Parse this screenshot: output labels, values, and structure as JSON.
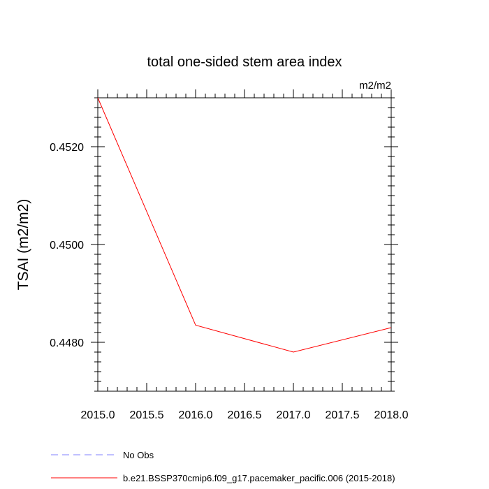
{
  "chart_data": {
    "type": "line",
    "title": "total one-sided stem area index",
    "units_label": "m2/m2",
    "ylabel": "TSAI  (m2/m2)",
    "xlabel": "",
    "xlim": [
      2015.0,
      2018.0
    ],
    "ylim": [
      0.447,
      0.453
    ],
    "x_ticks": [
      2015.0,
      2015.5,
      2016.0,
      2016.5,
      2017.0,
      2017.5,
      2018.0
    ],
    "x_tick_labels": [
      "2015.0",
      "2015.5",
      "2016.0",
      "2016.5",
      "2017.0",
      "2017.5",
      "2018.0"
    ],
    "y_ticks": [
      0.448,
      0.45,
      0.452
    ],
    "y_tick_labels": [
      "0.4480",
      "0.4500",
      "0.4520"
    ],
    "grid": false,
    "legend_placement": "bottom",
    "series": [
      {
        "name": "b.e21.BSSP370cmip6.f09_g17.pacemaker_pacific.006 (2015-2018)",
        "color": "#ff0000",
        "dash": "solid",
        "x": [
          2015.0,
          2016.0,
          2017.0,
          2018.0
        ],
        "y": [
          0.453,
          0.44835,
          0.4478,
          0.4483
        ]
      }
    ],
    "legend": [
      {
        "label": "No Obs",
        "color": "#8080ff",
        "dash": "dashed"
      },
      {
        "label": "b.e21.BSSP370cmip6.f09_g17.pacemaker_pacific.006 (2015-2018)",
        "color": "#ff0000",
        "dash": "solid"
      }
    ]
  }
}
